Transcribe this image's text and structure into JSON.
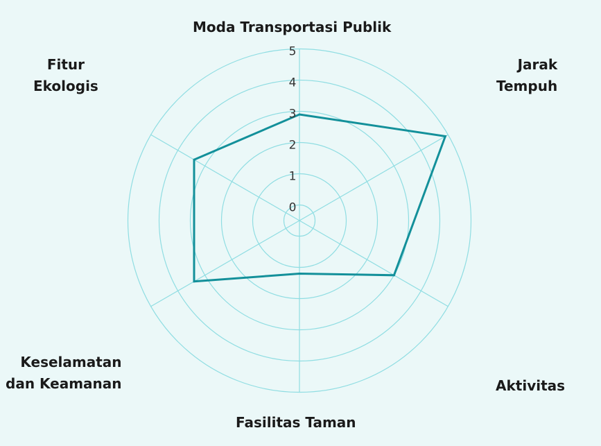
{
  "chart_data": {
    "type": "radar",
    "categories": [
      "Moda Transportasi Publik",
      "Jarak Tempuh",
      "Aktivitas",
      "Fasilitas Taman",
      "Keselamatan dan Keamanan",
      "Fitur Ekologis"
    ],
    "category_lines": [
      [
        "Moda Transportasi Publik"
      ],
      [
        "Jarak",
        "Tempuh"
      ],
      [
        "Aktivitas"
      ],
      [
        "Fasilitas Taman"
      ],
      [
        "Keselamatan",
        "dan Keamanan"
      ],
      [
        "Fitur",
        "Ekologis"
      ]
    ],
    "ticks": [
      "0",
      "1",
      "2",
      "3",
      "4",
      "5"
    ],
    "rlim": [
      0,
      5
    ],
    "series": [
      {
        "values": [
          2.9,
          4.9,
          3.0,
          1.2,
          3.4,
          3.4
        ],
        "color": "#13909a"
      }
    ],
    "grid_color": "#8fdde2",
    "grid": true,
    "legend": "none"
  }
}
